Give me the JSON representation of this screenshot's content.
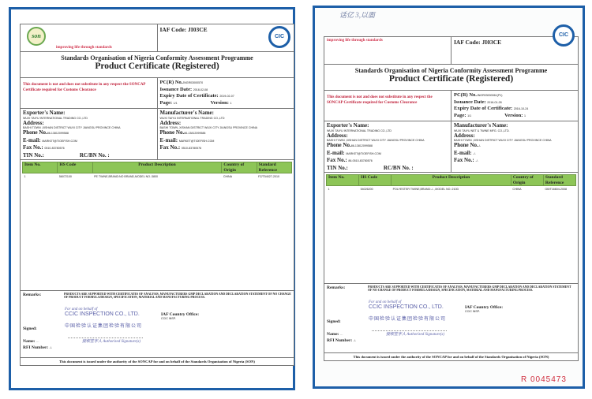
{
  "certs": [
    {
      "slogan": "improving life through standards",
      "iaf_code": "IAF Code:  JI03CE",
      "logo_son": "son",
      "logo_cic": "CIC",
      "org": "Standards Organisation of Nigeria Conformity Assessment Programme",
      "title": "Product Certificate (Registered)",
      "notice": "This document is not and does not substitute in any respect the SONCAP Certificate required for Customs Clearance",
      "pc_label": "PC(R) No.",
      "pc_value": "JNGR03000570",
      "issuance_label": "Issuance Date:",
      "issuance_value": "2018-02-08",
      "expiry_label": "Expiry Date of Certificate:",
      "expiry_value": "2019-02-07",
      "page_label": "Page:",
      "page_value": "1/1",
      "version_label": "Version:",
      "version_value": "1",
      "exporter": {
        "name_label": "Exporter's Name:",
        "name": "WUXI TAIYU INTERNATIONAL TRADING CO.,LTD",
        "addr_label": "Address:",
        "addr": "BASHI TOWN ,XISHAN DISTRICT WUXI CITY JIANGSU PROVINCE CHINA",
        "phone_label": "Phone No.",
        "phone": "86-13812099588",
        "email_label": "E-mail:",
        "email": "MARKET@TIOEFISH.COM",
        "fax_label": "Fax No.:",
        "fax": "0510-83780576",
        "tin_label": "TIN No.:",
        "rc_label": "RC/BN No. :"
      },
      "manufacturer": {
        "name_label": "Manufacturer's Name:",
        "name": "WUXI TAIYU INTERNATIONAL TRADING CO.,LTD",
        "addr_label": "Address:",
        "addr": "BASHI TOWN ,XISHAN DISTRICT WUXI CITY JIANGSU PROVINCE CHINA",
        "phone_label": "Phone No.",
        "phone": "86-13812099588",
        "email_label": "E-mail:",
        "email": "MARKET@TIOEFISH.COM",
        "fax_label": "Fax No.:",
        "fax": "0510-83780576"
      },
      "columns": [
        "Item No.",
        "HS Code",
        "Product Description",
        "Country of Origin",
        "Standard Reference"
      ],
      "rows": [
        [
          "1",
          "56072100",
          "PE TWINE,BRAND:NO BRAND,MODEL NO.:3800",
          "CHINA",
          "FZ/T54027-2010"
        ]
      ],
      "remarks_label": "Remarks:",
      "remarks": "PRODUCTS ARE SUPPORTED WITH CERTIFICATES OF ANALYSIS, MANUFACTURERS GMP DECLARATION AND DECLARATION STATEMENT OF NO CHANGE OF PRODUCT FORMULA/DESIGN, SPECIFICATION, MATERIAL AND MANUFACTURING PROCESS.",
      "stamp_line1": "For and on behalf of",
      "stamp_line2": "CCIC INSPECTION CO., LTD.",
      "stamp_line3": "中国检验认证集团检验有限公司",
      "signed_label": "Signed:",
      "name_label": "Name:",
      "name_value": "…",
      "auth": "授权签字人 Authorized Signature(s)",
      "rfi_label": "RFI Number:",
      "rfi_value": "-/-",
      "iaf_office_label": "IAF Country Office:",
      "iaf_office": "CCIC INSP.",
      "footer": "This document is issued under the authority of the SONCAP for and on behalf of the Standards Organisation of Nigeria (SON)"
    },
    {
      "slogan": "improving life through standards",
      "iaf_code": "IAF Code:  JI03CE",
      "logo_cic": "CIC",
      "org": "Standards Organisation of Nigeria Conformity Assessment Programme",
      "title": "Product Certificate (Registered)",
      "notice": "This document is not and does not substitute in any respect the SONCAP Certificate required for Customs Clearance",
      "pc_label": "PC(R) No.",
      "pc_value": "JNGR03000061(P1)",
      "issuance_label": "Issuance Date:",
      "issuance_value": "2016-01-28",
      "expiry_label": "Expiry Date of Certificate:",
      "expiry_value": "2016-10-24",
      "page_label": "Page:",
      "page_value": "1/1",
      "version_label": "Version:",
      "version_value": "1",
      "exporter": {
        "name_label": "Exporter's Name:",
        "name": "WUXI TAIYU INTERNATIONAL TRADING CO.,LTD",
        "addr_label": "Address:",
        "addr": "BASHI TOWN ,XISHAN DISTRICT WUXI CITY JIANGSU PROVINCE CHINA",
        "phone_label": "Phone No.",
        "phone": "86-13812099588",
        "email_label": "E-mail:",
        "email": "MARKET@TIOEFISH.COM",
        "fax_label": "Fax No.:",
        "fax": "86-0510-83780576",
        "tin_label": "TIN No.:",
        "rc_label": "RC/BN No. :"
      },
      "manufacturer": {
        "name_label": "Manufacturer's Name:",
        "name": "WUXI TAIYU NET & TWINE MFG. CO.,LTD.",
        "addr_label": "Address:",
        "addr": "BASHI TOWN ,XISHAN DISTRICT WUXI CITY JIANGSU PROVINCE CHINA",
        "phone_label": "Phone No.",
        "phone": "-/-",
        "email_label": "E-mail:",
        "email": "-/-",
        "fax_label": "Fax No.:",
        "fax": "-/-"
      },
      "columns": [
        "Item No.",
        "HS Code",
        "Product Description",
        "Country of Origin",
        "Standard Reference"
      ],
      "rows": [
        [
          "1",
          "54026200",
          "POLYESTER TWINE,BRAND:-/- ,MODEL NO.:210D",
          "CHINA",
          "GB/T16604-2008"
        ]
      ],
      "remarks_label": "Remarks:",
      "remarks": "PRODUCTS ARE SUPPORTED WITH CERTIFICATES OF ANALYSIS, MANUFACTURERS GMP DECLARATION AND DECLARATION STATEMENT OF NO CHANGE OF PRODUCT FORMULA/DESIGN, SPECIFICATION, MATERIAL AND MANUFACTURING PROCESS.",
      "stamp_line1": "For and on behalf of",
      "stamp_line2": "CCIC INSPECTION CO., LTD.",
      "stamp_line3": "中国检验认证集团检验有限公司",
      "signed_label": "Signed:",
      "name_label": "Name:",
      "name_value": "…",
      "auth": "授权签字人 Authorized Signature(s)",
      "rfi_label": "RFI Number:",
      "rfi_value": "-/-",
      "iaf_office_label": "IAF Country Office:",
      "iaf_office": "CCIC INSP.",
      "footer": "This document is issued under the authority of the SONCAP for and on behalf of the Standards Organisation of Nigeria (SON)"
    }
  ],
  "handwritten_note": "话亿 3,以面",
  "serial_number": "R  0045473"
}
